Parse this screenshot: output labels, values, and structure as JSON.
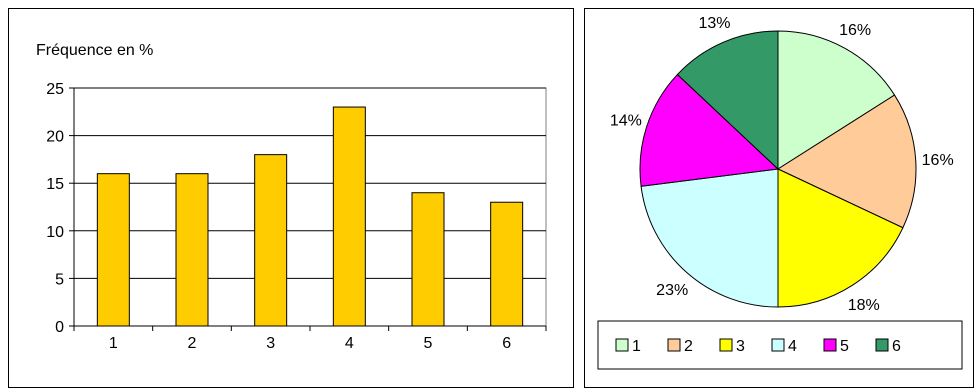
{
  "colors": {
    "bar_fill": "#FFCC00",
    "bar_stroke": "#000000",
    "plot_background": "#FFFFFF",
    "gridline": "#000000",
    "slices": [
      "#CCFFCC",
      "#FFCC99",
      "#FFFF00",
      "#CCFFFF",
      "#FF00FF",
      "#339966"
    ]
  },
  "chart_data": [
    {
      "type": "bar",
      "ylabel": "Fréquence en %",
      "categories": [
        "1",
        "2",
        "3",
        "4",
        "5",
        "6"
      ],
      "values": [
        16,
        16,
        18,
        23,
        14,
        13
      ],
      "ylim": [
        0,
        25
      ],
      "yticks": [
        "0",
        "5",
        "10",
        "15",
        "20",
        "25"
      ],
      "grid": true
    },
    {
      "type": "pie",
      "categories": [
        "1",
        "2",
        "3",
        "4",
        "5",
        "6"
      ],
      "values": [
        16,
        16,
        18,
        23,
        14,
        13
      ],
      "labels": [
        "16%",
        "16%",
        "18%",
        "23%",
        "14%",
        "13%"
      ],
      "legend": [
        "1",
        "2",
        "3",
        "4",
        "5",
        "6"
      ],
      "legend_position": "bottom"
    }
  ]
}
